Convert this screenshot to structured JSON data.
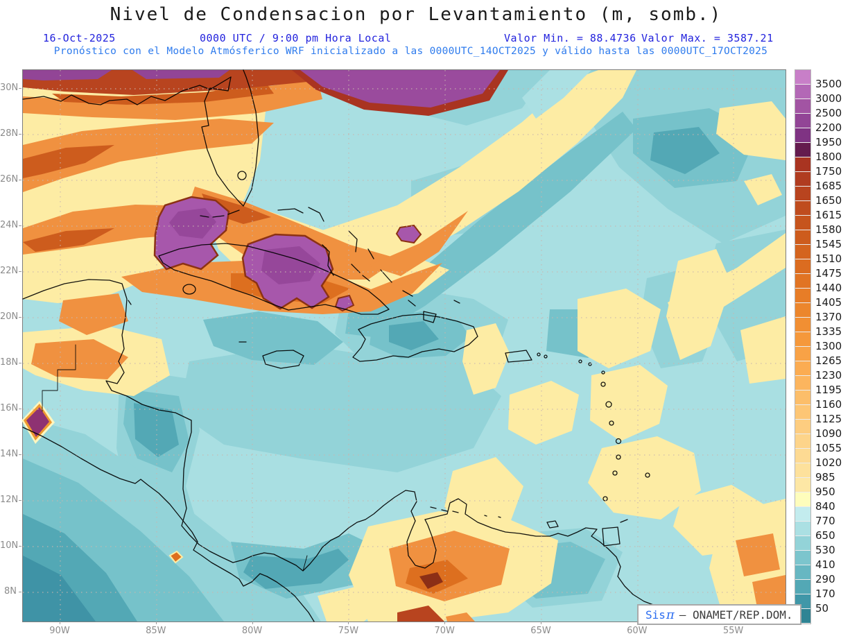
{
  "header": {
    "title": "Nivel de Condensacion por Levantamiento (m, somb.)",
    "date": "16-Oct-2025",
    "time": "0000 UTC / 9:00 pm Hora Local",
    "valor_min": "Valor Min. = 88.4736",
    "valor_max": "Valor Max. = 3587.21",
    "model_line": "Pronóstico con el Modelo Atmósferico WRF inicializado a las 0000UTC_14OCT2025 y válido hasta las  0000UTC_17OCT2025"
  },
  "map": {
    "lat_labels": [
      "30N",
      "28N",
      "26N",
      "24N",
      "22N",
      "20N",
      "18N",
      "16N",
      "14N",
      "12N",
      "10N",
      "8N"
    ],
    "lon_labels": [
      "90W",
      "85W",
      "80W",
      "75W",
      "70W",
      "65W",
      "60W",
      "55W"
    ]
  },
  "colorbar": {
    "labels": [
      "3500",
      "3000",
      "2500",
      "2200",
      "1950",
      "1800",
      "1750",
      "1685",
      "1650",
      "1615",
      "1580",
      "1545",
      "1510",
      "1475",
      "1440",
      "1405",
      "1370",
      "1335",
      "1300",
      "1265",
      "1230",
      "1195",
      "1160",
      "1125",
      "1090",
      "1055",
      "1020",
      "985",
      "950",
      "840",
      "770",
      "650",
      "530",
      "410",
      "290",
      "170",
      "50"
    ],
    "colors_top_to_bottom": [
      "#c87fc8",
      "#b368b6",
      "#a254a3",
      "#924596",
      "#7f3383",
      "#641b4e",
      "#a93421",
      "#b03c20",
      "#b8441f",
      "#bf4c1e",
      "#c6541d",
      "#cd5c1d",
      "#d4641e",
      "#db6c20",
      "#e17423",
      "#e77d27",
      "#ec862c",
      "#f18f33",
      "#f5983b",
      "#f8a246",
      "#fbac52",
      "#fcb55e",
      "#fcbe6a",
      "#fdc675",
      "#fdcd80",
      "#fdd48a",
      "#fdda93",
      "#fde19c",
      "#fde7a5",
      "#fefdbc",
      "#c3ecee",
      "#abe0e3",
      "#93d3d8",
      "#7cc5cd",
      "#67b7c2",
      "#53a8b5",
      "#4097a8",
      "#2f8494"
    ]
  },
  "watermark": {
    "brand": "Sis",
    "symbol": "π",
    "separator": "–",
    "org": "ONAMET/REP.DOM."
  },
  "chart_data": {
    "type": "heatmap",
    "title": "Nivel de Condensacion por Levantamiento (m, somb.)",
    "units": "m",
    "date": "16-Oct-2025",
    "time": "0000 UTC / 9:00 pm Hora Local",
    "value_min": 88.4736,
    "value_max": 3587.21,
    "model_info": "Pronóstico con el Modelo Atmósferico WRF inicializado a las 0000UTC_14OCT2025 y válido hasta las 0000UTC_17OCT2025",
    "x_ticks": [
      "90W",
      "85W",
      "80W",
      "75W",
      "70W",
      "65W",
      "60W",
      "55W"
    ],
    "y_ticks": [
      "30N",
      "28N",
      "26N",
      "24N",
      "22N",
      "20N",
      "18N",
      "16N",
      "14N",
      "12N",
      "10N",
      "8N"
    ],
    "colorbar_levels_ascending": [
      50,
      170,
      290,
      410,
      530,
      650,
      770,
      840,
      950,
      985,
      1020,
      1055,
      1090,
      1125,
      1160,
      1195,
      1230,
      1265,
      1300,
      1335,
      1370,
      1405,
      1440,
      1475,
      1510,
      1545,
      1580,
      1615,
      1650,
      1685,
      1750,
      1800,
      1950,
      2200,
      2500,
      3000,
      3500
    ],
    "grid": true,
    "legend_position": "right"
  }
}
